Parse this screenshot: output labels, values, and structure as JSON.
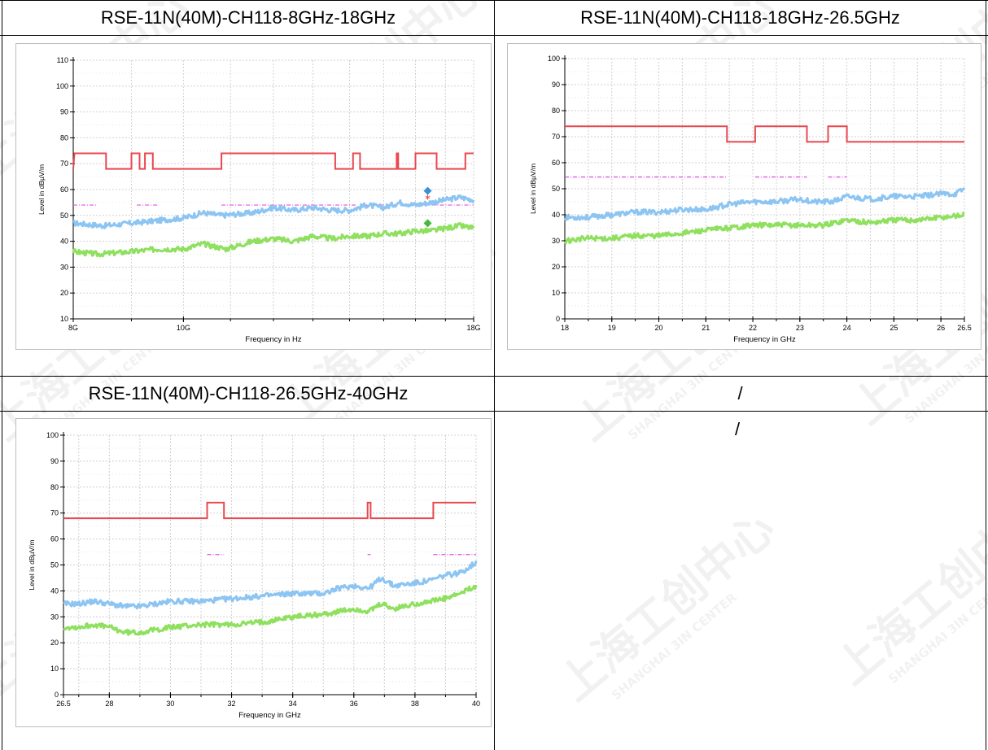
{
  "table": {
    "headers": [
      "RSE-11N(40M)-CH118-8GHz-18GHz",
      "RSE-11N(40M)-CH118-18GHz-26.5GHz",
      "RSE-11N(40M)-CH118-26.5GHz-40GHz",
      "/"
    ],
    "empty_cell_text": "/"
  },
  "watermark": {
    "text_cn": "上海工创中心",
    "text_en": "SHANGHAI 3IN CENTER"
  },
  "colors": {
    "limit": "#e8484f",
    "peak": "#8cc4f2",
    "average": "#8ee05e",
    "avg_limit": "#e050e0",
    "marker_peak": "#3a8fd8",
    "marker_avg": "#46b83a",
    "marker_star": "#e02020",
    "grid": "#d0d0d0"
  },
  "chart_data": [
    {
      "type": "line",
      "ylabel": "Level in dBµV/m",
      "xlabel": "Frequency in Hz",
      "x_scale": "log",
      "xlim": [
        8,
        18
      ],
      "ylim": [
        10,
        110
      ],
      "yticks": [
        10,
        20,
        30,
        40,
        50,
        60,
        70,
        80,
        90,
        100,
        110
      ],
      "xticks": [
        8,
        10,
        18
      ],
      "xtick_labels": [
        "8G",
        "10G",
        "18G"
      ],
      "grid": true,
      "series": [
        {
          "key": "limit",
          "style": "step",
          "points": [
            [
              8,
              68
            ],
            [
              8.02,
              74
            ],
            [
              8.55,
              74
            ],
            [
              8.55,
              68
            ],
            [
              9.0,
              68
            ],
            [
              9.0,
              74
            ],
            [
              9.15,
              74
            ],
            [
              9.15,
              68
            ],
            [
              9.25,
              68
            ],
            [
              9.25,
              74
            ],
            [
              9.4,
              74
            ],
            [
              9.4,
              68
            ],
            [
              10.8,
              68
            ],
            [
              10.8,
              74
            ],
            [
              13.6,
              74
            ],
            [
              13.6,
              68
            ],
            [
              14.1,
              68
            ],
            [
              14.1,
              74
            ],
            [
              14.3,
              74
            ],
            [
              14.3,
              68
            ],
            [
              15.4,
              68
            ],
            [
              15.4,
              74
            ],
            [
              15.45,
              74
            ],
            [
              15.45,
              68
            ],
            [
              16.0,
              68
            ],
            [
              16.0,
              74
            ],
            [
              16.7,
              74
            ],
            [
              16.7,
              68
            ],
            [
              17.7,
              68
            ],
            [
              17.7,
              74
            ],
            [
              18,
              74
            ]
          ]
        },
        {
          "key": "avg_limit",
          "style": "dash",
          "segments": [
            [
              8,
              8.4,
              54
            ],
            [
              9.1,
              9.5,
              54
            ],
            [
              10.8,
              14.2,
              54
            ],
            [
              14.4,
              15.4,
              54
            ],
            [
              16,
              18,
              54
            ]
          ]
        },
        {
          "key": "peak",
          "style": "noisy",
          "points": [
            [
              8,
              47
            ],
            [
              8.5,
              46
            ],
            [
              9,
              47
            ],
            [
              9.5,
              48
            ],
            [
              10,
              49
            ],
            [
              10.4,
              51
            ],
            [
              10.8,
              50
            ],
            [
              11.5,
              51
            ],
            [
              12,
              53
            ],
            [
              12.5,
              52
            ],
            [
              13,
              53
            ],
            [
              13.5,
              52
            ],
            [
              14,
              52
            ],
            [
              14.5,
              54
            ],
            [
              15,
              53
            ],
            [
              15.5,
              55
            ],
            [
              16,
              54
            ],
            [
              16.5,
              55
            ],
            [
              17,
              56
            ],
            [
              17.5,
              57
            ],
            [
              18,
              56
            ]
          ]
        },
        {
          "key": "average",
          "style": "noisy",
          "points": [
            [
              8,
              36
            ],
            [
              8.4,
              35
            ],
            [
              9,
              36
            ],
            [
              9.5,
              37
            ],
            [
              10,
              37
            ],
            [
              10.4,
              39
            ],
            [
              10.9,
              37
            ],
            [
              11.5,
              40
            ],
            [
              12,
              41
            ],
            [
              12.5,
              40
            ],
            [
              13,
              42
            ],
            [
              13.5,
              41
            ],
            [
              14,
              42
            ],
            [
              14.5,
              42
            ],
            [
              15,
              43
            ],
            [
              15.5,
              43
            ],
            [
              16,
              44
            ],
            [
              16.5,
              44
            ],
            [
              17,
              45
            ],
            [
              17.5,
              46
            ],
            [
              18,
              45
            ]
          ]
        }
      ],
      "markers": [
        {
          "key": "marker_peak",
          "shape": "diamond",
          "x": 16.4,
          "y": 59.5
        },
        {
          "key": "marker_star",
          "shape": "star",
          "x": 16.4,
          "y": 56
        },
        {
          "key": "marker_avg",
          "shape": "diamond",
          "x": 16.4,
          "y": 47
        }
      ]
    },
    {
      "type": "line",
      "ylabel": "Level in dBµV/m",
      "xlabel": "Frequency in GHz",
      "x_scale": "linear",
      "xlim": [
        18,
        26.5
      ],
      "ylim": [
        0,
        100
      ],
      "yticks": [
        0,
        10,
        20,
        30,
        40,
        50,
        60,
        70,
        80,
        90,
        100
      ],
      "xticks": [
        18,
        19,
        20,
        21,
        22,
        23,
        24,
        25,
        26,
        26.5
      ],
      "xtick_labels": [
        "18",
        "19",
        "20",
        "21",
        "22",
        "23",
        "24",
        "25",
        "26",
        "26.5"
      ],
      "grid": true,
      "series": [
        {
          "key": "limit",
          "style": "step",
          "points": [
            [
              18,
              74
            ],
            [
              21.45,
              74
            ],
            [
              21.45,
              68
            ],
            [
              22.05,
              68
            ],
            [
              22.05,
              74
            ],
            [
              23.15,
              74
            ],
            [
              23.15,
              68
            ],
            [
              23.6,
              68
            ],
            [
              23.6,
              74
            ],
            [
              24.0,
              74
            ],
            [
              24.0,
              68
            ],
            [
              26.5,
              68
            ]
          ]
        },
        {
          "key": "avg_limit",
          "style": "dash",
          "segments": [
            [
              18,
              21.45,
              54.5
            ],
            [
              22.05,
              23.15,
              54.5
            ],
            [
              23.6,
              24.0,
              54.5
            ]
          ]
        },
        {
          "key": "peak",
          "style": "noisy",
          "points": [
            [
              18,
              39
            ],
            [
              18.5,
              39
            ],
            [
              19,
              40
            ],
            [
              19.5,
              41
            ],
            [
              20,
              41
            ],
            [
              20.5,
              42
            ],
            [
              21,
              42
            ],
            [
              21.5,
              44
            ],
            [
              22,
              45
            ],
            [
              22.5,
              45
            ],
            [
              23,
              46
            ],
            [
              23.3,
              45
            ],
            [
              23.7,
              45
            ],
            [
              24,
              47
            ],
            [
              24.5,
              46
            ],
            [
              25,
              47
            ],
            [
              25.5,
              47
            ],
            [
              26,
              48
            ],
            [
              26.3,
              48
            ],
            [
              26.5,
              50
            ]
          ]
        },
        {
          "key": "average",
          "style": "noisy",
          "points": [
            [
              18,
              30
            ],
            [
              18.5,
              31
            ],
            [
              19,
              31
            ],
            [
              19.5,
              32
            ],
            [
              20,
              32
            ],
            [
              20.5,
              33
            ],
            [
              21,
              34
            ],
            [
              21.5,
              35
            ],
            [
              22,
              36
            ],
            [
              22.5,
              36
            ],
            [
              23,
              36
            ],
            [
              23.5,
              36
            ],
            [
              24,
              38
            ],
            [
              24.5,
              37
            ],
            [
              25,
              38
            ],
            [
              25.5,
              38
            ],
            [
              26,
              39
            ],
            [
              26.5,
              40
            ]
          ]
        }
      ],
      "markers": []
    },
    {
      "type": "line",
      "ylabel": "Level in dBµV/m",
      "xlabel": "Frequency in GHz",
      "x_scale": "linear",
      "xlim": [
        26.5,
        40
      ],
      "ylim": [
        0,
        100
      ],
      "yticks": [
        0,
        10,
        20,
        30,
        40,
        50,
        60,
        70,
        80,
        90,
        100
      ],
      "xticks": [
        26.5,
        28,
        30,
        32,
        34,
        36,
        38,
        40
      ],
      "xtick_labels": [
        "26.5",
        "28",
        "30",
        "32",
        "34",
        "36",
        "38",
        "40"
      ],
      "grid": true,
      "series": [
        {
          "key": "limit",
          "style": "step",
          "points": [
            [
              26.5,
              68
            ],
            [
              31.2,
              68
            ],
            [
              31.2,
              74
            ],
            [
              31.75,
              74
            ],
            [
              31.75,
              68
            ],
            [
              36.45,
              68
            ],
            [
              36.45,
              74
            ],
            [
              36.55,
              74
            ],
            [
              36.55,
              68
            ],
            [
              38.6,
              68
            ],
            [
              38.6,
              74
            ],
            [
              40,
              74
            ]
          ]
        },
        {
          "key": "avg_limit",
          "style": "dash",
          "segments": [
            [
              31.2,
              31.75,
              54
            ],
            [
              36.45,
              36.55,
              54
            ],
            [
              38.6,
              40,
              54
            ]
          ]
        },
        {
          "key": "peak",
          "style": "noisy",
          "points": [
            [
              26.5,
              35
            ],
            [
              27,
              35
            ],
            [
              27.5,
              36
            ],
            [
              28,
              35
            ],
            [
              28.5,
              34
            ],
            [
              29,
              34
            ],
            [
              29.5,
              35
            ],
            [
              30,
              36
            ],
            [
              31,
              36
            ],
            [
              32,
              37
            ],
            [
              33,
              38
            ],
            [
              34,
              39
            ],
            [
              35,
              39
            ],
            [
              35.5,
              41
            ],
            [
              36,
              42
            ],
            [
              36.5,
              41
            ],
            [
              36.9,
              45
            ],
            [
              37.3,
              42
            ],
            [
              38,
              43
            ],
            [
              38.5,
              44
            ],
            [
              39,
              46
            ],
            [
              39.5,
              47
            ],
            [
              40,
              51
            ]
          ]
        },
        {
          "key": "average",
          "style": "noisy",
          "points": [
            [
              26.5,
              26
            ],
            [
              27,
              26
            ],
            [
              27.5,
              27
            ],
            [
              28,
              26
            ],
            [
              28.5,
              24
            ],
            [
              29,
              24
            ],
            [
              29.5,
              25
            ],
            [
              30,
              26
            ],
            [
              31,
              27
            ],
            [
              32,
              27
            ],
            [
              33,
              28
            ],
            [
              34,
              30
            ],
            [
              35,
              31
            ],
            [
              36,
              33
            ],
            [
              36.5,
              32
            ],
            [
              36.9,
              35
            ],
            [
              37.3,
              33
            ],
            [
              38,
              35
            ],
            [
              38.5,
              36
            ],
            [
              39,
              37
            ],
            [
              39.5,
              39
            ],
            [
              40,
              42
            ]
          ]
        }
      ],
      "markers": []
    }
  ]
}
